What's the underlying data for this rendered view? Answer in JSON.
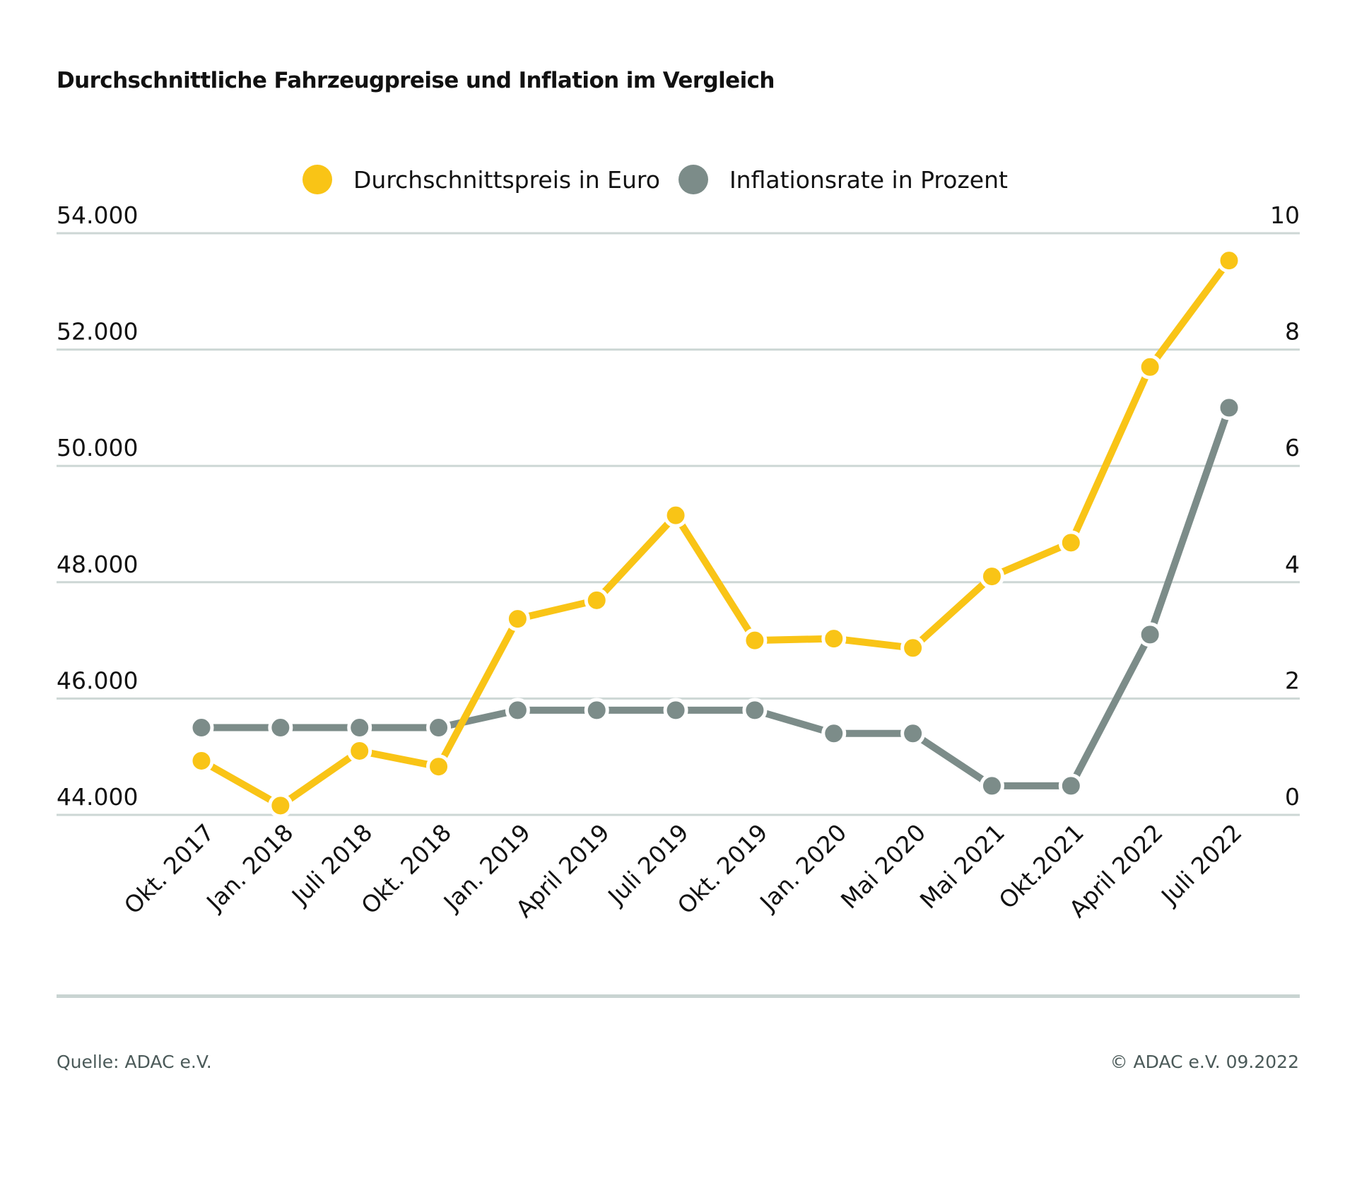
{
  "title": "Durchschnittliche Fahrzeugpreise und Inflation im Vergleich",
  "legend": [
    {
      "label": "Durchschnittspreis in Euro",
      "color": "#f9c416"
    },
    {
      "label": "Inflationsrate in Prozent",
      "color": "#7c8c89"
    }
  ],
  "footer": {
    "source": "Quelle: ADAC e.V.",
    "copyright": "© ADAC e.V. 09.2022"
  },
  "chart_data": {
    "type": "line",
    "title": "Durchschnittliche Fahrzeugpreise und Inflation im Vergleich",
    "categories": [
      "Okt. 2017",
      "Jan. 2018",
      "Juli 2018",
      "Okt. 2018",
      "Jan. 2019",
      "April 2019",
      "Juli 2019",
      "Okt. 2019",
      "Jan. 2020",
      "Mai 2020",
      "Mai 2021",
      "Okt.2021",
      "April 2022",
      "Juli 2022"
    ],
    "series": [
      {
        "name": "Durchschnittspreis in Euro",
        "axis": "left",
        "color": "#f9c416",
        "values": [
          44930,
          44160,
          45100,
          44830,
          47370,
          47690,
          49150,
          47000,
          47030,
          46870,
          48100,
          48680,
          51700,
          53530
        ]
      },
      {
        "name": "Inflationsrate in Prozent",
        "axis": "right",
        "color": "#7c8c89",
        "values": [
          1.5,
          1.5,
          1.5,
          1.5,
          1.8,
          1.8,
          1.8,
          1.8,
          1.4,
          1.4,
          0.5,
          0.5,
          3.1,
          7.0
        ]
      }
    ],
    "y_left": {
      "ylim": [
        44000,
        54000
      ],
      "ticks": [
        "44.000",
        "46.000",
        "48.000",
        "50.000",
        "52.000",
        "54.000"
      ]
    },
    "y_right": {
      "ylim": [
        0,
        10
      ],
      "ticks": [
        "0",
        "2",
        "4",
        "6",
        "8",
        "10"
      ]
    },
    "xlabel": "",
    "ylabel": "",
    "grid": true,
    "legend_position": "top-center",
    "gridline_color": "#cdd7d5"
  }
}
